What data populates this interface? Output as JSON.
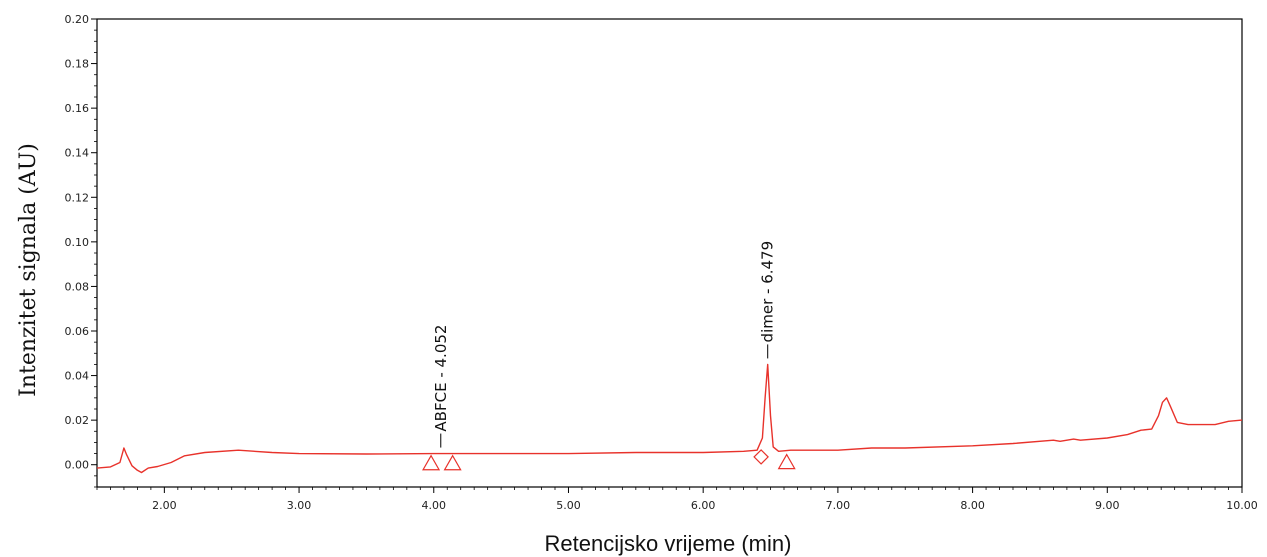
{
  "chart_data": {
    "type": "line",
    "xlabel": "Retencijsko vrijeme (min)",
    "ylabel": "Intenzitet signala (AU)",
    "xlim": [
      1.5,
      10.0
    ],
    "ylim": [
      -0.01,
      0.2
    ],
    "x_ticks": [
      2.0,
      3.0,
      4.0,
      5.0,
      6.0,
      7.0,
      8.0,
      9.0,
      10.0
    ],
    "x_tick_labels": [
      "2.00",
      "3.00",
      "4.00",
      "5.00",
      "6.00",
      "7.00",
      "8.00",
      "9.00",
      "10.00"
    ],
    "y_ticks": [
      0.0,
      0.02,
      0.04,
      0.06,
      0.08,
      0.1,
      0.12,
      0.14,
      0.16,
      0.18,
      0.2
    ],
    "y_tick_labels": [
      "0.00",
      "0.02",
      "0.04",
      "0.06",
      "0.08",
      "0.10",
      "0.12",
      "0.14",
      "0.16",
      "0.18",
      "0.20"
    ],
    "line_color": "#e8322b",
    "series": [
      {
        "x": [
          1.5,
          1.6,
          1.67,
          1.7,
          1.72,
          1.76,
          1.8,
          1.83,
          1.88,
          1.95,
          2.05,
          2.15,
          2.3,
          2.55,
          2.8,
          3.0,
          3.5,
          4.0,
          4.5,
          5.0,
          5.5,
          6.0,
          6.3,
          6.4,
          6.44,
          6.46,
          6.479,
          6.5,
          6.52,
          6.56,
          6.65,
          7.0,
          7.25,
          7.5,
          8.0,
          8.3,
          8.6,
          8.65,
          8.7,
          8.75,
          8.8,
          9.0,
          9.15,
          9.25,
          9.33,
          9.38,
          9.41,
          9.44,
          9.47,
          9.52,
          9.6,
          9.8,
          9.9,
          10.0
        ],
        "y": [
          -0.0015,
          -0.001,
          0.001,
          0.0075,
          0.0045,
          -0.0005,
          -0.0025,
          -0.0035,
          -0.0015,
          -0.0008,
          0.001,
          0.004,
          0.0055,
          0.0065,
          0.0055,
          0.005,
          0.0048,
          0.005,
          0.005,
          0.005,
          0.0055,
          0.0055,
          0.006,
          0.0065,
          0.012,
          0.03,
          0.045,
          0.022,
          0.008,
          0.006,
          0.0065,
          0.0065,
          0.0075,
          0.0075,
          0.0085,
          0.0095,
          0.011,
          0.0105,
          0.011,
          0.0115,
          0.011,
          0.012,
          0.0135,
          0.0155,
          0.016,
          0.022,
          0.028,
          0.03,
          0.026,
          0.019,
          0.018,
          0.018,
          0.0195,
          0.02
        ]
      }
    ],
    "peaks": [
      {
        "label": "ABFCE - 4.052",
        "x": 4.052,
        "y": 0.005
      },
      {
        "label": "dimer - 6.479",
        "x": 6.479,
        "y": 0.045
      }
    ],
    "markers": [
      {
        "shape": "triangle",
        "x": 3.98,
        "y": 0.0
      },
      {
        "shape": "triangle",
        "x": 4.14,
        "y": 0.0
      },
      {
        "shape": "diamond",
        "x": 6.43,
        "y": 0.0035
      },
      {
        "shape": "triangle",
        "x": 6.62,
        "y": 0.0005
      }
    ],
    "grid": false,
    "legend": "none"
  }
}
